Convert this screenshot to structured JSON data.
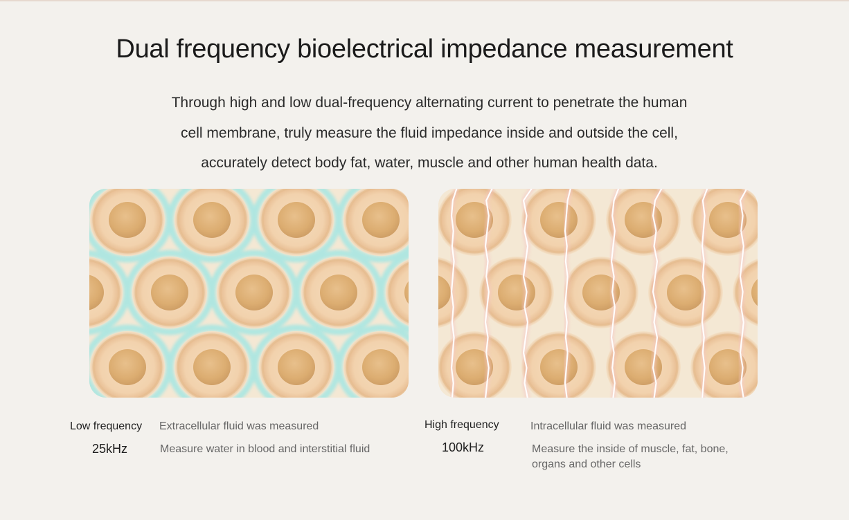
{
  "title": "Dual frequency bioelectrical impedance measurement",
  "description": [
    "Through high and low dual-frequency alternating current to penetrate the human",
    "cell membrane, truly measure the fluid impedance inside and outside the cell,",
    "accurately detect body fat, water, muscle and other human health data."
  ],
  "low": {
    "name": "Low frequency",
    "value": "25kHz",
    "line1": "Extracellular fluid was measured",
    "line2": "Measure water in blood and interstitial fluid"
  },
  "high": {
    "name": "High frequency",
    "value": "100kHz",
    "line1": "Intracellular fluid was measured",
    "line2a": "Measure the inside of muscle, fat, bone,",
    "line2b": "organs and other cells"
  },
  "colors": {
    "background": "#f3f1ed",
    "cell_membrane": "#ecc9a2",
    "nucleus": "#dcae72",
    "extracellular_fluid": "#a9e6e2",
    "current_line": "#f2b0b0"
  }
}
